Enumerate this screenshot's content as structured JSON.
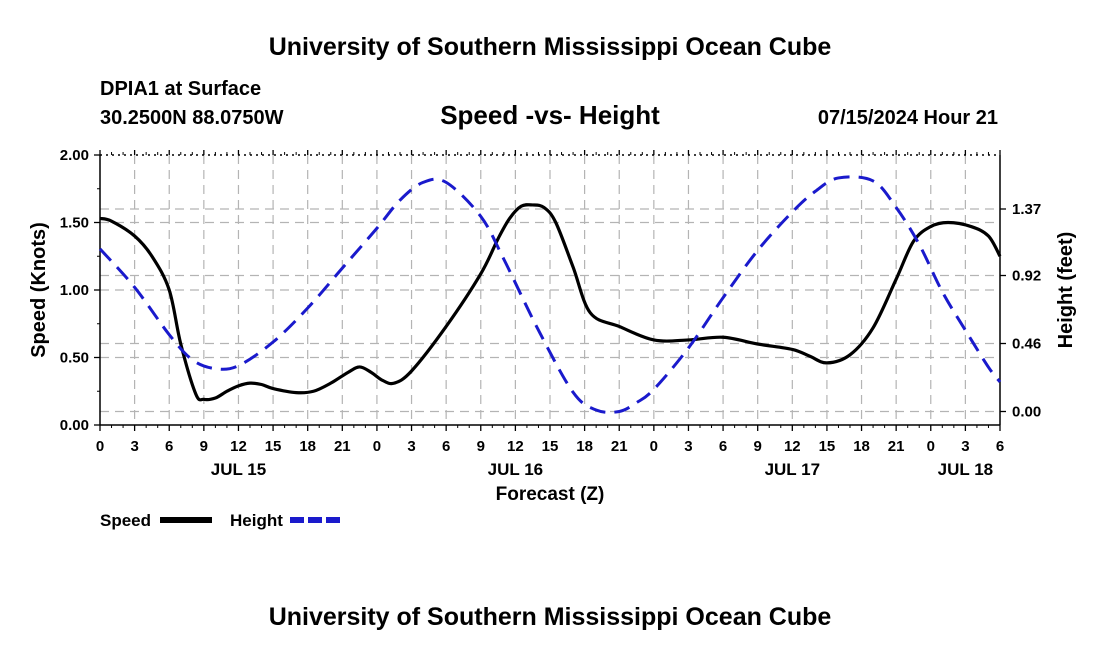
{
  "header": {
    "title": "University of Southern Mississippi Ocean Cube",
    "station": "DPIA1 at Surface",
    "coords": "30.2500N  88.0750W",
    "chart_title": "Speed -vs- Height",
    "datetime": "07/15/2024 Hour 21"
  },
  "footer": {
    "title": "University of Southern Mississippi Ocean Cube"
  },
  "colors": {
    "speed": "#000000",
    "height": "#1a1acc",
    "grid": "#b4b4b4"
  },
  "chart_data": {
    "type": "line",
    "title": "Speed -vs- Height",
    "xlabel": "Forecast (Z)",
    "ylabel": "Speed (Knots)",
    "y2label": "Height (feet)",
    "x_range_hours": [
      0,
      78
    ],
    "ylim": [
      0,
      2.0
    ],
    "y2_ticks": [
      0.0,
      0.46,
      0.92,
      1.37
    ],
    "y2_tick_labels": [
      "0.00",
      "0.46",
      "0.92",
      "1.37"
    ],
    "y2_mapping": {
      "height_0_at_speed": 0.1,
      "height_1_37_at_speed": 1.6
    },
    "yticks": [
      0,
      0.5,
      1.0,
      1.5,
      2.0
    ],
    "ytick_labels": [
      "0.00",
      "0.50",
      "1.00",
      "1.50",
      "2.00"
    ],
    "xtick_step_hours": 3,
    "xtick_labels": [
      "0",
      "3",
      "6",
      "9",
      "12",
      "15",
      "18",
      "21",
      "0",
      "3",
      "6",
      "9",
      "12",
      "15",
      "18",
      "21",
      "0",
      "3",
      "6",
      "9",
      "12",
      "15",
      "18",
      "21",
      "0",
      "3",
      "6"
    ],
    "date_labels": [
      {
        "label": "JUL 15",
        "hour": 12
      },
      {
        "label": "JUL 16",
        "hour": 36
      },
      {
        "label": "JUL 17",
        "hour": 60
      },
      {
        "label": "JUL 18",
        "hour": 75
      }
    ],
    "legend": [
      {
        "name": "Speed",
        "style": "solid"
      },
      {
        "name": "Height",
        "style": "dashed"
      }
    ],
    "series": [
      {
        "name": "Speed",
        "axis": "left",
        "x": [
          0,
          1,
          3,
          4.5,
          6,
          7,
          8.3,
          9,
          10,
          11,
          12,
          13,
          14,
          15,
          17,
          18.5,
          20,
          21.5,
          22.5,
          23.5,
          24.5,
          25.5,
          27,
          30,
          33,
          34.5,
          35.5,
          36.5,
          37.5,
          38.5,
          39.5,
          41,
          42.5,
          45,
          48,
          51,
          54,
          57,
          60,
          61.5,
          63,
          65,
          67,
          69,
          70.5,
          72,
          73.5,
          75.5,
          77,
          78
        ],
        "values": [
          1.53,
          1.51,
          1.4,
          1.25,
          1.0,
          0.6,
          0.23,
          0.19,
          0.2,
          0.25,
          0.29,
          0.31,
          0.3,
          0.27,
          0.24,
          0.25,
          0.31,
          0.39,
          0.43,
          0.39,
          0.33,
          0.31,
          0.4,
          0.73,
          1.12,
          1.38,
          1.53,
          1.62,
          1.63,
          1.61,
          1.5,
          1.17,
          0.83,
          0.73,
          0.63,
          0.63,
          0.65,
          0.6,
          0.56,
          0.51,
          0.46,
          0.52,
          0.72,
          1.08,
          1.36,
          1.47,
          1.5,
          1.47,
          1.4,
          1.25
        ]
      },
      {
        "name": "Height",
        "axis": "right",
        "x": [
          0,
          3,
          6,
          8,
          10,
          12,
          15,
          18,
          21,
          24,
          26,
          28,
          30,
          33,
          35,
          38,
          41,
          43,
          45,
          46.5,
          48,
          51,
          54,
          57,
          60,
          62,
          64,
          67,
          69,
          71,
          73,
          75,
          77,
          78
        ],
        "values": [
          1.1,
          0.84,
          0.52,
          0.35,
          0.29,
          0.31,
          0.47,
          0.7,
          0.97,
          1.24,
          1.43,
          1.55,
          1.55,
          1.32,
          1.03,
          0.55,
          0.13,
          0.01,
          0.0,
          0.06,
          0.15,
          0.43,
          0.77,
          1.09,
          1.35,
          1.49,
          1.58,
          1.56,
          1.38,
          1.13,
          0.81,
          0.55,
          0.3,
          0.2
        ]
      }
    ]
  }
}
